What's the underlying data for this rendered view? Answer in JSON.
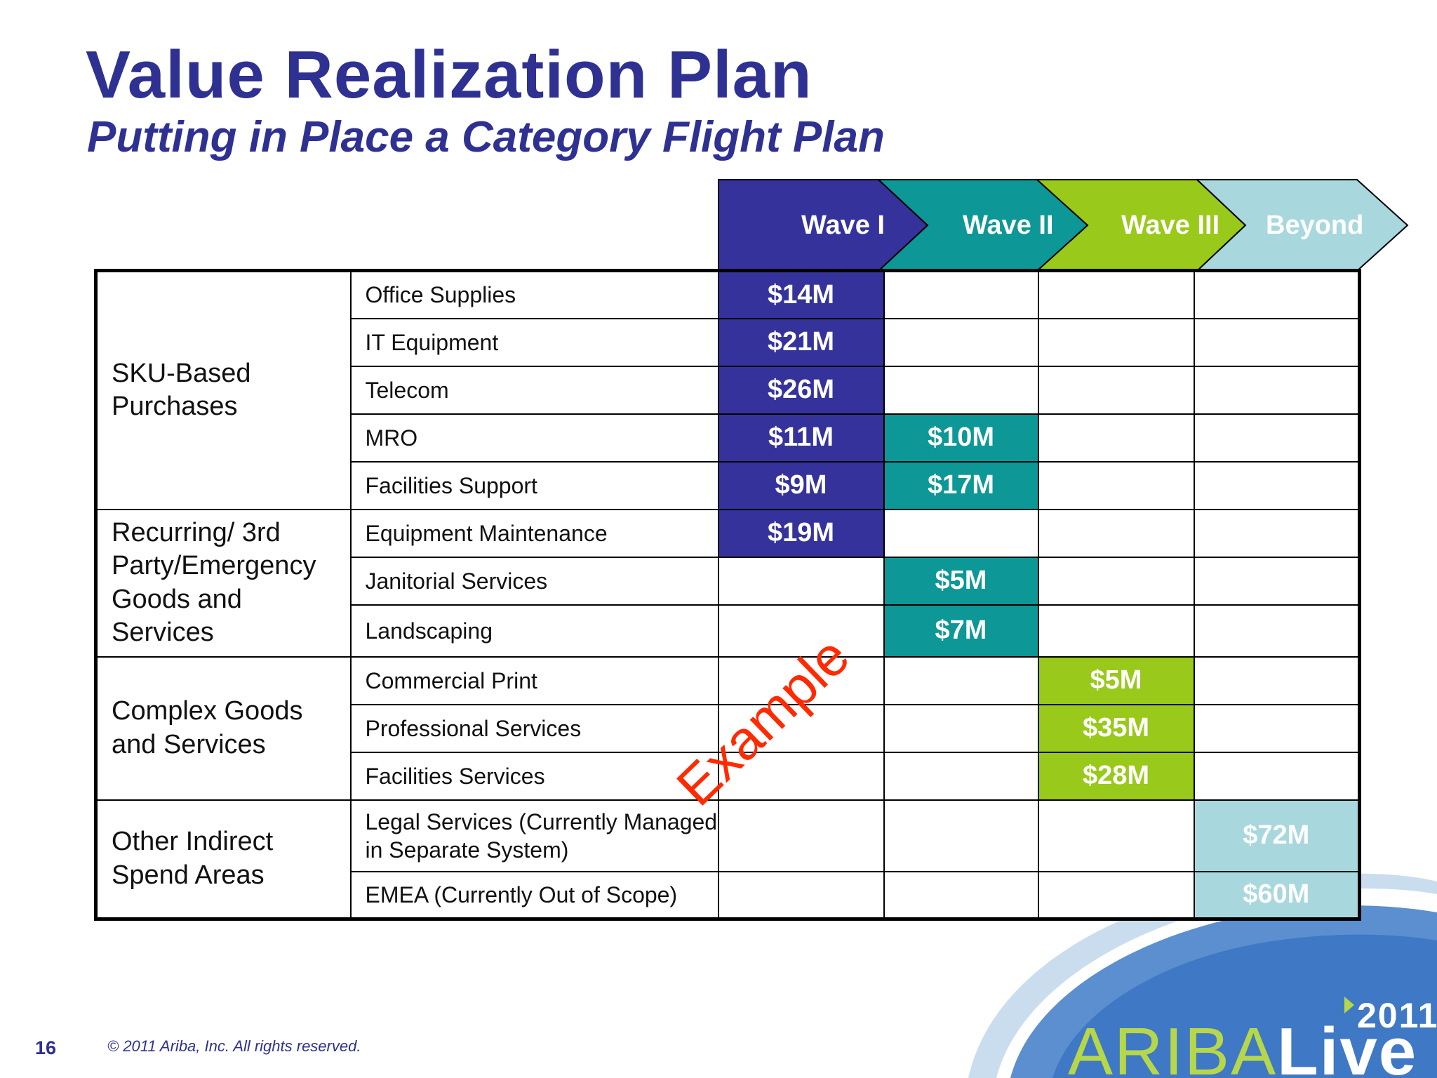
{
  "slide": {
    "title": "Value Realization Plan",
    "subtitle": "Putting in Place a Category Flight Plan",
    "page_number": "16",
    "copyright": "© 2011 Ariba, Inc. All rights reserved.",
    "watermark": "Example"
  },
  "waves": [
    {
      "label": "Wave I",
      "color": "#35339b"
    },
    {
      "label": "Wave II",
      "color": "#0d9796"
    },
    {
      "label": "Wave III",
      "color": "#99c91a"
    },
    {
      "label": "Beyond",
      "color": "#a8d8dd"
    }
  ],
  "groups": {
    "sku": "SKU-Based Purchases",
    "recurring": "Recurring/ 3rd Party/Emergency Goods and Services",
    "complex": "Complex Goods and Services",
    "other": "Other Indirect Spend Areas"
  },
  "rows": [
    {
      "category": "Office Supplies",
      "values": [
        "$14M",
        "",
        "",
        ""
      ]
    },
    {
      "category": "IT Equipment",
      "values": [
        "$21M",
        "",
        "",
        ""
      ]
    },
    {
      "category": "Telecom",
      "values": [
        "$26M",
        "",
        "",
        ""
      ]
    },
    {
      "category": "MRO",
      "values": [
        "$11M",
        "$10M",
        "",
        ""
      ]
    },
    {
      "category": "Facilities Support",
      "values": [
        "$9M",
        "$17M",
        "",
        ""
      ]
    },
    {
      "category": "Equipment Maintenance",
      "values": [
        "$19M",
        "",
        "",
        ""
      ]
    },
    {
      "category": "Janitorial Services",
      "values": [
        "",
        "$5M",
        "",
        ""
      ]
    },
    {
      "category": "Landscaping",
      "values": [
        "",
        "$7M",
        "",
        ""
      ]
    },
    {
      "category": "Commercial Print",
      "values": [
        "",
        "",
        "$5M",
        ""
      ]
    },
    {
      "category": "Professional Services",
      "values": [
        "",
        "",
        "$35M",
        ""
      ]
    },
    {
      "category": "Facilities Services",
      "values": [
        "",
        "",
        "$28M",
        ""
      ]
    },
    {
      "category": "Legal Services (Currently Managed in Separate System)",
      "values": [
        "",
        "",
        "",
        "$72M"
      ]
    },
    {
      "category": "EMEA (Currently Out of Scope)",
      "values": [
        "",
        "",
        "",
        "$60M"
      ]
    }
  ],
  "logo": {
    "word_light": "ARIBA",
    "word_bold": "Live",
    "year": "2011",
    "brand_color": "#b7d74a"
  }
}
